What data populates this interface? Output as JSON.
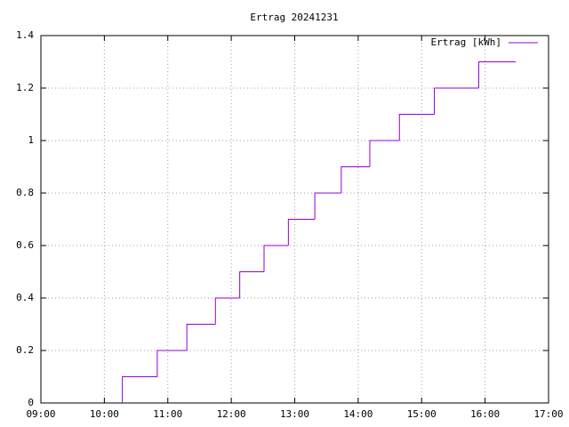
{
  "chart_data": {
    "type": "step",
    "title": "Ertrag 20241231",
    "x": [
      "10:17",
      "10:50",
      "11:18",
      "11:45",
      "12:08",
      "12:31",
      "12:54",
      "13:19",
      "13:44",
      "14:11",
      "14:39",
      "15:12",
      "15:54",
      "16:29"
    ],
    "series": [
      {
        "name": "Ertrag [kWh]",
        "color": "#9400d3",
        "values": [
          0.1,
          0.2,
          0.3,
          0.4,
          0.5,
          0.6,
          0.7,
          0.8,
          0.9,
          1,
          1.1,
          1.2,
          1.3,
          1.3
        ]
      }
    ],
    "xlim": [
      "09:00",
      "17:00"
    ],
    "xticks": [
      "09:00",
      "10:00",
      "11:00",
      "12:00",
      "13:00",
      "14:00",
      "15:00",
      "16:00",
      "17:00"
    ],
    "ylim": [
      0,
      1.4
    ],
    "yticks": [
      0,
      0.2,
      0.4,
      0.6,
      0.8,
      1,
      1.2,
      1.4
    ],
    "grid": true,
    "legend": "top-right"
  }
}
